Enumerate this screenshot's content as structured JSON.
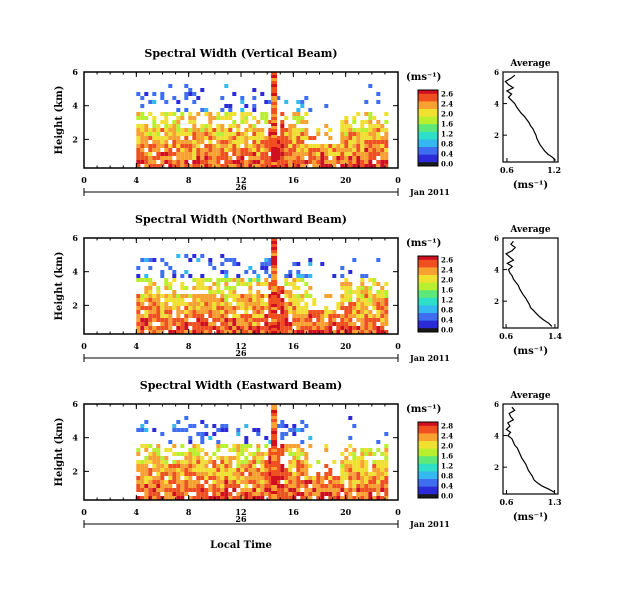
{
  "figure": {
    "xlabel": "Local Time",
    "date_label": "Jan 2011",
    "day_label": "26",
    "colorbar_unit": "(ms⁻¹)",
    "avg_title": "Average",
    "avg_unit": "(ms⁻¹)",
    "colormap": [
      "#1a1a1a",
      "#2b2bd8",
      "#3f6ff0",
      "#35b8f0",
      "#2fe0c8",
      "#5fe87a",
      "#b8f030",
      "#f0e030",
      "#f8a030",
      "#f05020",
      "#d01020"
    ]
  },
  "chart_data": [
    {
      "type": "heatmap",
      "title": "Spectral Width (Vertical Beam)",
      "ylabel": "Height (km)",
      "x_ticks": [
        "0",
        "4",
        "8",
        "12",
        "16",
        "20",
        "0"
      ],
      "y_ticks": [
        "6",
        "4",
        "2"
      ],
      "xlim": [
        0,
        24
      ],
      "ylim": [
        0.3,
        6
      ],
      "colorbar_ticks": [
        "2.6",
        "2.4",
        "2.0",
        "1.6",
        "1.2",
        "0.8",
        "0.4",
        "0.0"
      ],
      "average": {
        "x_ticks": [
          "0.6",
          "1.2"
        ],
        "xlim": [
          0.55,
          1.25
        ],
        "y_ticks": [
          "6",
          "4",
          "2"
        ],
        "ylim": [
          0.3,
          6
        ],
        "height": [
          0.4,
          0.6,
          0.8,
          1.0,
          1.2,
          1.4,
          1.6,
          1.8,
          2.0,
          2.2,
          2.4,
          2.6,
          2.8,
          3.0,
          3.2,
          3.4,
          3.6,
          3.8,
          4.0,
          4.2,
          4.4,
          4.6,
          4.8,
          5.0,
          5.2,
          5.4,
          5.6,
          5.8
        ],
        "value": [
          1.22,
          1.18,
          1.12,
          1.08,
          1.05,
          1.02,
          1.0,
          0.98,
          0.97,
          0.95,
          0.93,
          0.9,
          0.88,
          0.85,
          0.82,
          0.78,
          0.75,
          0.72,
          0.7,
          0.66,
          0.62,
          0.66,
          0.6,
          0.68,
          0.62,
          0.58,
          0.65,
          0.7
        ]
      }
    },
    {
      "type": "heatmap",
      "title": "Spectral Width (Northward Beam)",
      "ylabel": "Height (km)",
      "x_ticks": [
        "0",
        "4",
        "8",
        "12",
        "16",
        "20",
        "0"
      ],
      "y_ticks": [
        "6",
        "4",
        "2"
      ],
      "xlim": [
        0,
        24
      ],
      "ylim": [
        0.3,
        6
      ],
      "colorbar_ticks": [
        "2.6",
        "2.4",
        "2.0",
        "1.6",
        "1.2",
        "0.8",
        "0.4",
        "0.0"
      ],
      "average": {
        "x_ticks": [
          "0.6",
          "1.4"
        ],
        "xlim": [
          0.55,
          1.45
        ],
        "y_ticks": [
          "6",
          "4",
          "2"
        ],
        "ylim": [
          0.3,
          6
        ],
        "height": [
          0.4,
          0.6,
          0.8,
          1.0,
          1.2,
          1.4,
          1.6,
          1.8,
          2.0,
          2.2,
          2.4,
          2.6,
          2.8,
          3.0,
          3.2,
          3.4,
          3.6,
          3.8,
          4.0,
          4.2,
          4.4,
          4.6,
          4.8,
          5.0,
          5.2,
          5.4,
          5.6,
          5.8
        ],
        "value": [
          1.35,
          1.3,
          1.22,
          1.15,
          1.1,
          1.05,
          1.0,
          0.98,
          0.95,
          0.92,
          0.88,
          0.85,
          0.82,
          0.8,
          0.76,
          0.72,
          0.7,
          0.66,
          0.64,
          0.7,
          0.62,
          0.72,
          0.66,
          0.6,
          0.7,
          0.75,
          0.68,
          0.72
        ]
      }
    },
    {
      "type": "heatmap",
      "title": "Spectral Width (Eastward Beam)",
      "ylabel": "Height (km)",
      "x_ticks": [
        "0",
        "4",
        "8",
        "12",
        "16",
        "20",
        "0"
      ],
      "y_ticks": [
        "6",
        "4",
        "2"
      ],
      "xlim": [
        0,
        24
      ],
      "ylim": [
        0.3,
        6
      ],
      "colorbar_ticks": [
        "2.8",
        "2.4",
        "2.0",
        "1.6",
        "1.2",
        "0.8",
        "0.4",
        "0.0"
      ],
      "average": {
        "x_ticks": [
          "0.6",
          "1.3"
        ],
        "xlim": [
          0.55,
          1.35
        ],
        "y_ticks": [
          "6",
          "4",
          "2"
        ],
        "ylim": [
          0.3,
          6
        ],
        "height": [
          0.4,
          0.6,
          0.8,
          1.0,
          1.2,
          1.4,
          1.6,
          1.8,
          2.0,
          2.2,
          2.4,
          2.6,
          2.8,
          3.0,
          3.2,
          3.4,
          3.6,
          3.8,
          4.0,
          4.2,
          4.4,
          4.6,
          4.8,
          5.0,
          5.2,
          5.4,
          5.6,
          5.8
        ],
        "value": [
          1.3,
          1.22,
          1.12,
          1.05,
          1.0,
          0.98,
          0.95,
          0.92,
          0.9,
          0.88,
          0.85,
          0.82,
          0.8,
          0.78,
          0.76,
          0.72,
          0.7,
          0.68,
          0.62,
          0.66,
          0.6,
          0.65,
          0.62,
          0.7,
          0.66,
          0.64,
          0.72,
          0.68
        ]
      }
    }
  ]
}
